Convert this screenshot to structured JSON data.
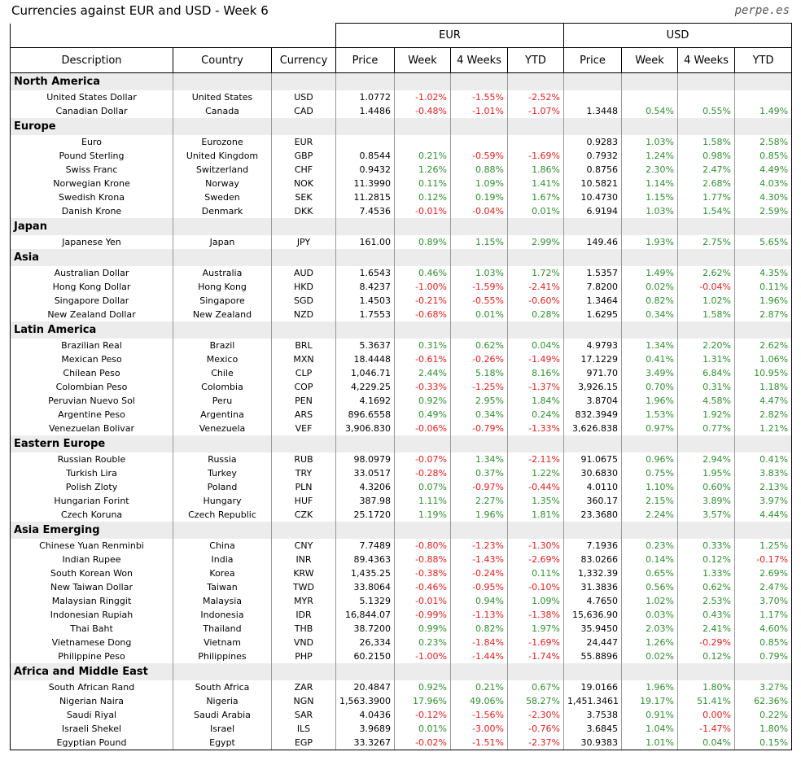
{
  "title": "Currencies against EUR and USD - Week 6",
  "source": "perpe.es",
  "table": {
    "groups": [
      "EUR",
      "USD"
    ],
    "columns": [
      "Description",
      "Country",
      "Currency",
      "Price",
      "Week",
      "4 Weeks",
      "YTD",
      "Price",
      "Week",
      "4 Weeks",
      "YTD"
    ],
    "sections": [
      {
        "name": "North America",
        "rows": [
          [
            "United States Dollar",
            "United States",
            "USD",
            "1.0772",
            "-1.02%",
            "-1.55%",
            "-2.52%",
            null,
            null,
            null,
            null
          ],
          [
            "Canadian Dollar",
            "Canada",
            "CAD",
            "1.4486",
            "-0.48%",
            "-1.01%",
            "-1.07%",
            "1.3448",
            "0.54%",
            "0.55%",
            "1.49%"
          ]
        ]
      },
      {
        "name": "Europe",
        "rows": [
          [
            "Euro",
            "Eurozone",
            "EUR",
            null,
            null,
            null,
            null,
            "0.9283",
            "1.03%",
            "1.58%",
            "2.58%"
          ],
          [
            "Pound Sterling",
            "United Kingdom",
            "GBP",
            "0.8544",
            "0.21%",
            "-0.59%",
            "-1.69%",
            "0.7932",
            "1.24%",
            "0.98%",
            "0.85%"
          ],
          [
            "Swiss Franc",
            "Switzerland",
            "CHF",
            "0.9432",
            "1.26%",
            "0.88%",
            "1.86%",
            "0.8756",
            "2.30%",
            "2.47%",
            "4.49%"
          ],
          [
            "Norwegian Krone",
            "Norway",
            "NOK",
            "11.3990",
            "0.11%",
            "1.09%",
            "1.41%",
            "10.5821",
            "1.14%",
            "2.68%",
            "4.03%"
          ],
          [
            "Swedish Krona",
            "Sweden",
            "SEK",
            "11.2815",
            "0.12%",
            "0.19%",
            "1.67%",
            "10.4730",
            "1.15%",
            "1.77%",
            "4.30%"
          ],
          [
            "Danish Krone",
            "Denmark",
            "DKK",
            "7.4536",
            "-0.01%",
            "-0.04%",
            "0.01%",
            "6.9194",
            "1.03%",
            "1.54%",
            "2.59%"
          ]
        ]
      },
      {
        "name": "Japan",
        "rows": [
          [
            "Japanese Yen",
            "Japan",
            "JPY",
            "161.00",
            "0.89%",
            "1.15%",
            "2.99%",
            "149.46",
            "1.93%",
            "2.75%",
            "5.65%"
          ]
        ]
      },
      {
        "name": "Asia",
        "rows": [
          [
            "Australian Dollar",
            "Australia",
            "AUD",
            "1.6543",
            "0.46%",
            "1.03%",
            "1.72%",
            "1.5357",
            "1.49%",
            "2.62%",
            "4.35%"
          ],
          [
            "Hong Kong Dollar",
            "Hong Kong",
            "HKD",
            "8.4237",
            "-1.00%",
            "-1.59%",
            "-2.41%",
            "7.8200",
            "0.02%",
            "-0.04%",
            "0.11%"
          ],
          [
            "Singapore Dollar",
            "Singapore",
            "SGD",
            "1.4503",
            "-0.21%",
            "-0.55%",
            "-0.60%",
            "1.3464",
            "0.82%",
            "1.02%",
            "1.96%"
          ],
          [
            "New Zealand Dollar",
            "New Zealand",
            "NZD",
            "1.7553",
            "-0.68%",
            "0.01%",
            "0.28%",
            "1.6295",
            "0.34%",
            "1.58%",
            "2.87%"
          ]
        ]
      },
      {
        "name": "Latin America",
        "rows": [
          [
            "Brazilian Real",
            "Brazil",
            "BRL",
            "5.3637",
            "0.31%",
            "0.62%",
            "0.04%",
            "4.9793",
            "1.34%",
            "2.20%",
            "2.62%"
          ],
          [
            "Mexican Peso",
            "Mexico",
            "MXN",
            "18.4448",
            "-0.61%",
            "-0.26%",
            "-1.49%",
            "17.1229",
            "0.41%",
            "1.31%",
            "1.06%"
          ],
          [
            "Chilean Peso",
            "Chile",
            "CLP",
            "1,046.71",
            "2.44%",
            "5.18%",
            "8.16%",
            "971.70",
            "3.49%",
            "6.84%",
            "10.95%"
          ],
          [
            "Colombian Peso",
            "Colombia",
            "COP",
            "4,229.25",
            "-0.33%",
            "-1.25%",
            "-1.37%",
            "3,926.15",
            "0.70%",
            "0.31%",
            "1.18%"
          ],
          [
            "Peruvian Nuevo Sol",
            "Peru",
            "PEN",
            "4.1692",
            "0.92%",
            "2.95%",
            "1.84%",
            "3.8704",
            "1.96%",
            "4.58%",
            "4.47%"
          ],
          [
            "Argentine Peso",
            "Argentina",
            "ARS",
            "896.6558",
            "0.49%",
            "0.34%",
            "0.24%",
            "832.3949",
            "1.53%",
            "1.92%",
            "2.82%"
          ],
          [
            "Venezuelan Bolivar",
            "Venezuela",
            "VEF",
            "3,906.830",
            "-0.06%",
            "-0.79%",
            "-1.33%",
            "3,626.838",
            "0.97%",
            "0.77%",
            "1.21%"
          ]
        ]
      },
      {
        "name": "Eastern Europe",
        "rows": [
          [
            "Russian Rouble",
            "Russia",
            "RUB",
            "98.0979",
            "-0.07%",
            "1.34%",
            "-2.11%",
            "91.0675",
            "0.96%",
            "2.94%",
            "0.41%"
          ],
          [
            "Turkish Lira",
            "Turkey",
            "TRY",
            "33.0517",
            "-0.28%",
            "0.37%",
            "1.22%",
            "30.6830",
            "0.75%",
            "1.95%",
            "3.83%"
          ],
          [
            "Polish Zloty",
            "Poland",
            "PLN",
            "4.3206",
            "0.07%",
            "-0.97%",
            "-0.44%",
            "4.0110",
            "1.10%",
            "0.60%",
            "2.13%"
          ],
          [
            "Hungarian Forint",
            "Hungary",
            "HUF",
            "387.98",
            "1.11%",
            "2.27%",
            "1.35%",
            "360.17",
            "2.15%",
            "3.89%",
            "3.97%"
          ],
          [
            "Czech Koruna",
            "Czech Republic",
            "CZK",
            "25.1720",
            "1.19%",
            "1.96%",
            "1.81%",
            "23.3680",
            "2.24%",
            "3.57%",
            "4.44%"
          ]
        ]
      },
      {
        "name": "Asia Emerging",
        "rows": [
          [
            "Chinese Yuan Renminbi",
            "China",
            "CNY",
            "7.7489",
            "-0.80%",
            "-1.23%",
            "-1.30%",
            "7.1936",
            "0.23%",
            "0.33%",
            "1.25%"
          ],
          [
            "Indian Rupee",
            "India",
            "INR",
            "89.4363",
            "-0.88%",
            "-1.43%",
            "-2.69%",
            "83.0266",
            "0.14%",
            "0.12%",
            "-0.17%"
          ],
          [
            "South Korean Won",
            "Korea",
            "KRW",
            "1,435.25",
            "-0.38%",
            "-0.24%",
            "0.11%",
            "1,332.39",
            "0.65%",
            "1.33%",
            "2.69%"
          ],
          [
            "New Taiwan Dollar",
            "Taiwan",
            "TWD",
            "33.8064",
            "-0.46%",
            "-0.95%",
            "-0.10%",
            "31.3836",
            "0.56%",
            "0.62%",
            "2.47%"
          ],
          [
            "Malaysian Ringgit",
            "Malaysia",
            "MYR",
            "5.1329",
            "-0.01%",
            "0.94%",
            "1.09%",
            "4.7650",
            "1.02%",
            "2.53%",
            "3.70%"
          ],
          [
            "Indonesian Rupiah",
            "Indonesia",
            "IDR",
            "16,844.07",
            "-0.99%",
            "-1.13%",
            "-1.38%",
            "15,636.90",
            "0.03%",
            "0.43%",
            "1.17%"
          ],
          [
            "Thai Baht",
            "Thailand",
            "THB",
            "38.7200",
            "0.99%",
            "0.82%",
            "1.97%",
            "35.9450",
            "2.03%",
            "2.41%",
            "4.60%"
          ],
          [
            "Vietnamese Dong",
            "Vietnam",
            "VND",
            "26,334",
            "0.23%",
            "-1.84%",
            "-1.69%",
            "24,447",
            "1.26%",
            "-0.29%",
            "0.85%"
          ],
          [
            "Philippine Peso",
            "Philippines",
            "PHP",
            "60.2150",
            "-1.00%",
            "-1.44%",
            "-1.74%",
            "55.8896",
            "0.02%",
            "0.12%",
            "0.79%"
          ]
        ]
      },
      {
        "name": "Africa and Middle East",
        "rows": [
          [
            "South African Rand",
            "South Africa",
            "ZAR",
            "20.4847",
            "0.92%",
            "0.21%",
            "0.67%",
            "19.0166",
            "1.96%",
            "1.80%",
            "3.27%"
          ],
          [
            "Nigerian Naira",
            "Nigeria",
            "NGN",
            "1,563.3900",
            "17.96%",
            "49.06%",
            "58.27%",
            "1,451.3461",
            "19.17%",
            "51.41%",
            "62.36%"
          ],
          [
            "Saudi Riyal",
            "Saudi Arabia",
            "SAR",
            "4.0436",
            "-0.12%",
            "-1.56%",
            "-2.30%",
            "3.7538",
            "0.91%",
            "0.00%",
            "0.22%"
          ],
          [
            "Israeli Shekel",
            "Israel",
            "ILS",
            "3.9689",
            "0.01%",
            "-3.00%",
            "-0.76%",
            "3.6845",
            "1.04%",
            "-1.47%",
            "1.80%"
          ],
          [
            "Egyptian Pound",
            "Egypt",
            "EGP",
            "33.3267",
            "-0.02%",
            "-1.51%",
            "-2.37%",
            "30.9383",
            "1.01%",
            "0.04%",
            "0.15%"
          ]
        ]
      }
    ]
  }
}
